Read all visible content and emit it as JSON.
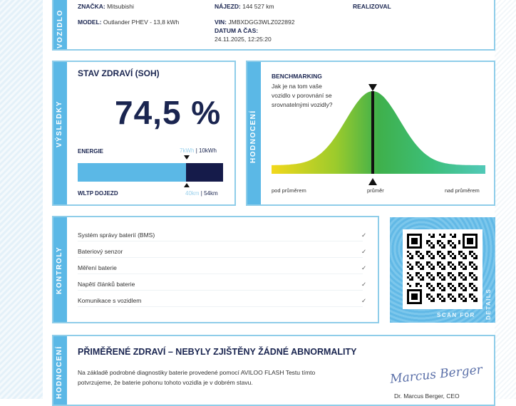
{
  "vehicle": {
    "tab": "VOZIDLO",
    "brand_label": "ZNAČKA:",
    "brand": "Mitsubishi",
    "model_label": "MODEL:",
    "model": "Outlander PHEV - 13,8 kWh",
    "mileage_label": "NÁJEZD:",
    "mileage": "144 527 km",
    "vin_label": "VIN:",
    "vin": "JMBXDGG3WLZ022892",
    "datetime_label": "DATUM A ČAS:",
    "datetime": "24.11.2025, 12:25:20",
    "performed_label": "REALIZOVAL"
  },
  "results": {
    "tab": "VÝSLEDKY",
    "title": "STAV ZDRAVÍ (SOH)",
    "soh": "74,5 %",
    "soh_percent": 74.5,
    "energy_label": "ENERGIE",
    "energy_current": "7kWh",
    "energy_total": "| 10kWh",
    "range_label": "WLTP DOJEZD",
    "range_current": "40km",
    "range_total": "| 54km",
    "colors": {
      "remaining": "#5bb8e6",
      "lost": "#151b4a"
    }
  },
  "benchmark": {
    "tab": "HODNOCENÍ",
    "title": "BENCHMARKING",
    "question": [
      "Jak je na tom vaše",
      "vozidlo v porovnání se",
      "srovnatelnými vozidly?"
    ],
    "below": "pod průměrem",
    "average": "průměr",
    "above": "nad průměrem",
    "position": "průměr"
  },
  "controls": {
    "tab": "KONTROLY",
    "items": [
      {
        "label": "Systém správy baterií (BMS)",
        "ok": true
      },
      {
        "label": "Bateriový senzor",
        "ok": true
      },
      {
        "label": "Měření baterie",
        "ok": true
      },
      {
        "label": "Napětí článků baterie",
        "ok": true
      },
      {
        "label": "Komunikace s vozidlem",
        "ok": true
      }
    ],
    "check": "✓"
  },
  "qr": {
    "scan": "SCAN FOR",
    "details": "DETAILS"
  },
  "verdict": {
    "tab": "HODNOCENÍ",
    "title": "PŘIMĚŘENÉ ZDRAVÍ – NEBYLY ZJIŠTĚNY ŽÁDNÉ ABNORMALITY",
    "text1": "Na základě podrobné diagnostiky baterie provedené pomocí AVILOO FLASH Testu tímto",
    "text2": "potvrzujeme, že baterie pohonu tohoto vozidla je v dobrém stavu.",
    "signature": "Marcus Berger",
    "signer": "Dr. Marcus Berger, CEO"
  }
}
